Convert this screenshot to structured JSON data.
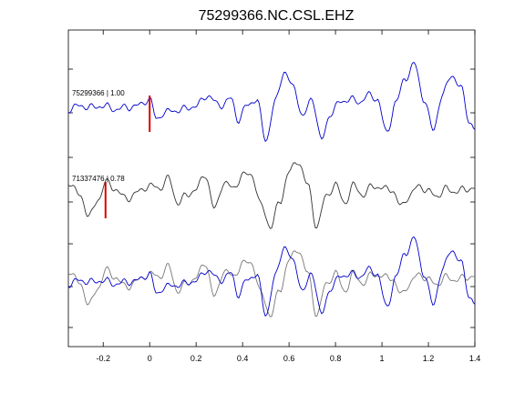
{
  "chart_data": {
    "type": "line",
    "title": "75299366.NC.CSL.EHZ",
    "xlabel": "",
    "ylabel": "",
    "xlim": [
      -0.35,
      1.4
    ],
    "x_ticks": [
      "-0.2",
      "0",
      "0.2",
      "0.4",
      "0.6",
      "0.8",
      "1",
      "1.2",
      "1.4"
    ],
    "x_tick_values": [
      -0.2,
      0,
      0.2,
      0.4,
      0.6,
      0.8,
      1.0,
      1.2,
      1.4
    ],
    "grid": false,
    "series": [
      {
        "name": "75299366 | 1.00",
        "color": "#0000cc",
        "panel": "top",
        "pick_time": 0.0,
        "x": [
          -0.35,
          -0.3,
          -0.25,
          -0.2,
          -0.15,
          -0.1,
          -0.05,
          0,
          0.03,
          0.06,
          0.1,
          0.15,
          0.2,
          0.25,
          0.3,
          0.35,
          0.38,
          0.42,
          0.46,
          0.5,
          0.54,
          0.58,
          0.62,
          0.66,
          0.7,
          0.74,
          0.78,
          0.82,
          0.86,
          0.9,
          0.94,
          0.98,
          1.02,
          1.06,
          1.1,
          1.14,
          1.18,
          1.22,
          1.26,
          1.3,
          1.34,
          1.38,
          1.4
        ],
        "y": [
          0.0,
          0.1,
          0.05,
          0.1,
          0.0,
          0.05,
          0.1,
          0.3,
          -0.3,
          -0.1,
          -0.05,
          0.0,
          0.1,
          0.4,
          0.1,
          0.3,
          -0.3,
          0.1,
          0.3,
          -0.9,
          0.2,
          1.1,
          0.6,
          -0.2,
          0.3,
          -0.9,
          -0.1,
          0.2,
          0.3,
          0.2,
          0.4,
          0.3,
          -0.7,
          0.2,
          0.9,
          1.3,
          0.3,
          -0.6,
          0.4,
          1.0,
          0.6,
          -0.4,
          -0.6
        ]
      },
      {
        "name": "71337476 | 0.78",
        "color": "#333333",
        "panel": "middle",
        "pick_time": -0.19,
        "x": [
          -0.35,
          -0.3,
          -0.26,
          -0.22,
          -0.19,
          -0.15,
          -0.1,
          -0.05,
          0,
          0.04,
          0.08,
          0.12,
          0.16,
          0.2,
          0.24,
          0.28,
          0.32,
          0.36,
          0.4,
          0.44,
          0.48,
          0.52,
          0.56,
          0.6,
          0.64,
          0.68,
          0.72,
          0.76,
          0.8,
          0.84,
          0.88,
          0.92,
          0.96,
          1.0,
          1.04,
          1.08,
          1.12,
          1.16,
          1.2,
          1.24,
          1.28,
          1.32,
          1.36,
          1.4
        ],
        "y": [
          0.4,
          0.0,
          -0.6,
          -0.1,
          0.4,
          0.2,
          -0.1,
          0.1,
          0.3,
          0.2,
          0.5,
          -0.2,
          0.0,
          0.2,
          0.6,
          -0.4,
          0.4,
          0.2,
          0.6,
          0.6,
          -0.3,
          -0.9,
          -0.2,
          0.7,
          1.0,
          0.3,
          -0.9,
          0.0,
          0.3,
          -0.2,
          0.3,
          0.0,
          0.3,
          0.2,
          0.2,
          -0.3,
          0.0,
          0.3,
          0.1,
          0.0,
          0.2,
          0.1,
          0.2,
          0.2
        ]
      }
    ],
    "panels": [
      "top",
      "middle",
      "overlay"
    ]
  }
}
